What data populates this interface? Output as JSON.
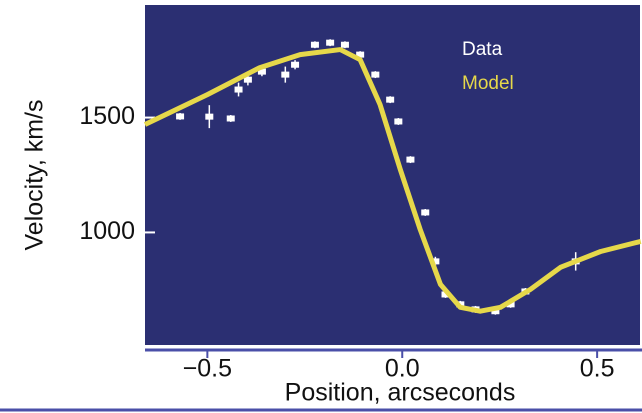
{
  "chart_data": {
    "type": "line",
    "x_label": "Position, arcseconds",
    "y_label": "Velocity, km/s",
    "xlim": [
      -0.66,
      0.61
    ],
    "ylim": [
      510,
      1990
    ],
    "xticks": [
      {
        "value": -0.5,
        "label": "−0.5"
      },
      {
        "value": 0,
        "label": "0.0"
      },
      {
        "value": 0.5,
        "label": "0.5"
      }
    ],
    "yticks": [
      1000,
      1500
    ],
    "legend": "top-right",
    "series": [
      {
        "name": "Data",
        "type": "scatter",
        "color": "#ffffff",
        "x": [
          -0.57,
          -0.495,
          -0.44,
          -0.42,
          -0.396,
          -0.36,
          -0.3,
          -0.275,
          -0.224,
          -0.185,
          -0.147,
          -0.108,
          -0.069,
          -0.031,
          -0.01,
          0.021,
          0.059,
          0.085,
          0.111,
          0.149,
          0.188,
          0.239,
          0.278,
          0.316,
          0.445
        ],
        "values": [
          1505,
          1504,
          1496,
          1622,
          1665,
          1700,
          1687,
          1730,
          1817,
          1826,
          1817,
          1774,
          1687,
          1578,
          1483,
          1317,
          1087,
          874,
          730,
          687,
          665,
          657,
          687,
          743,
          874
        ],
        "errors": [
          15,
          50,
          15,
          30,
          25,
          20,
          35,
          20,
          15,
          15,
          15,
          15,
          15,
          15,
          15,
          15,
          15,
          20,
          15,
          15,
          15,
          15,
          15,
          15,
          40
        ]
      },
      {
        "name": "Model",
        "type": "line",
        "color": "#e6d84a",
        "x": [
          -0.66,
          -0.5,
          -0.366,
          -0.262,
          -0.159,
          -0.108,
          -0.057,
          -0.005,
          0.046,
          0.098,
          0.149,
          0.2,
          0.252,
          0.329,
          0.406,
          0.509,
          0.612
        ],
        "values": [
          1470,
          1600,
          1717,
          1774,
          1796,
          1752,
          1557,
          1274,
          1013,
          774,
          674,
          657,
          674,
          752,
          848,
          917,
          961
        ]
      }
    ]
  }
}
